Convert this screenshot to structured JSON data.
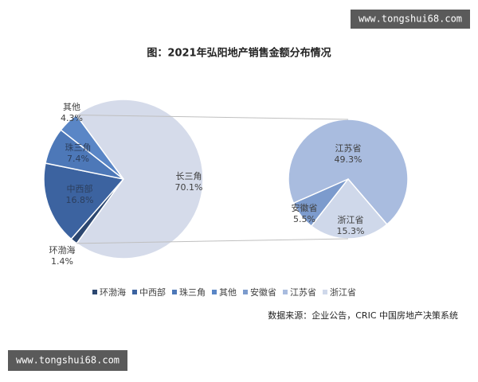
{
  "chart_data": [
    {
      "type": "pie",
      "title": "图：2021年弘阳地产销售金额分布情况",
      "categories": [
        "环渤海",
        "中西部",
        "珠三角",
        "其他",
        "长三角"
      ],
      "values": [
        1.4,
        16.8,
        7.4,
        4.3,
        70.1
      ],
      "value_labels": [
        "1.4%",
        "16.8%",
        "7.4%",
        "4.3%",
        "70.1%"
      ],
      "colors": [
        "#2c4770",
        "#3c63a0",
        "#4d78b8",
        "#5a86c6",
        "#d5dbea"
      ],
      "expanded": 4
    },
    {
      "type": "pie",
      "categories": [
        "安徽省",
        "江苏省",
        "浙江省"
      ],
      "values": [
        5.5,
        49.3,
        15.3
      ],
      "value_labels": [
        "5.5%",
        "49.3%",
        "15.3%"
      ],
      "colors": [
        "#7c9bcd",
        "#a9bcdf",
        "#cfd8ea"
      ]
    }
  ],
  "watermarks": [
    "www.tongshui68.com",
    "www.tongshui68.com"
  ],
  "source": "数据来源：企业公告，CRIC 中国房地产决策系统"
}
